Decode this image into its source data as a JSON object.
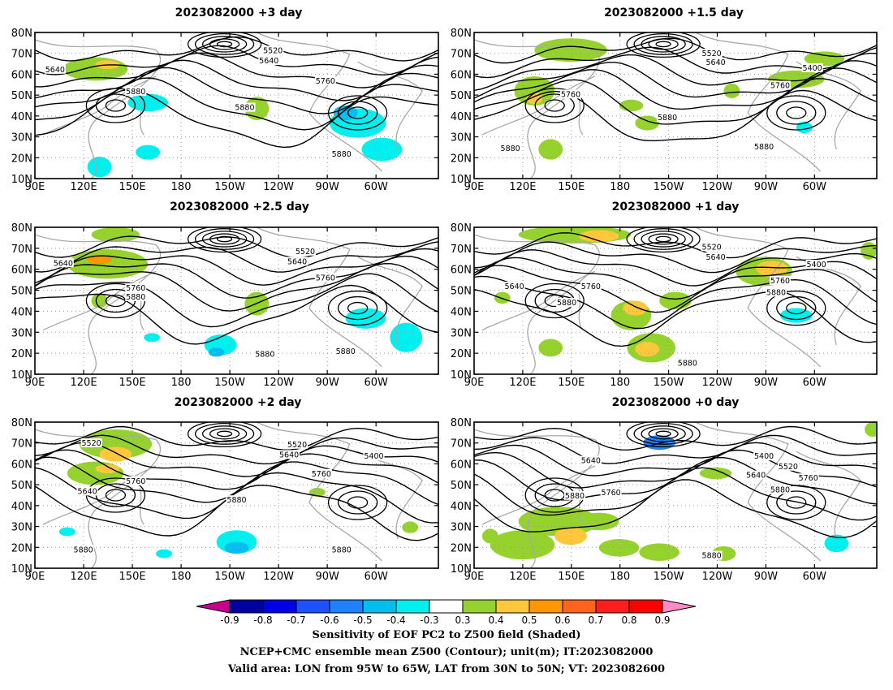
{
  "panels": [
    {
      "title": "2023082000  +3 day",
      "contours": [
        "5640",
        "5520",
        "5640",
        "5760",
        "5880",
        "5880",
        "5880"
      ]
    },
    {
      "title": "2023082000  +1.5 day",
      "contours": [
        "5520",
        "5640",
        "5400",
        "5760",
        "5760",
        "5880",
        "5880",
        "5880"
      ]
    },
    {
      "title": "2023082000  +2.5 day",
      "contours": [
        "5640",
        "5520",
        "5640",
        "5760",
        "5760",
        "5880",
        "5880",
        "5880"
      ]
    },
    {
      "title": "2023082000  +1 day",
      "contours": [
        "5520",
        "5640",
        "5400",
        "5760",
        "5640",
        "5760",
        "5880",
        "5880",
        "5880"
      ]
    },
    {
      "title": "2023082000  +2 day",
      "contours": [
        "5520",
        "5520",
        "5640",
        "5400",
        "5760",
        "5640",
        "5760",
        "5880",
        "5880",
        "5880"
      ]
    },
    {
      "title": "2023082000  +0 day",
      "contours": [
        "5640",
        "5400",
        "5520",
        "5640",
        "5760",
        "5880",
        "5760",
        "5880",
        "5880"
      ]
    }
  ],
  "axes": {
    "lat_labels": [
      "80N",
      "70N",
      "60N",
      "50N",
      "40N",
      "30N",
      "20N",
      "10N"
    ],
    "lon_labels": [
      "90E",
      "120E",
      "150E",
      "180",
      "150W",
      "120W",
      "90W",
      "60W"
    ]
  },
  "colorbar": {
    "labels": [
      "-0.9",
      "-0.8",
      "-0.7",
      "-0.6",
      "-0.5",
      "-0.4",
      "-0.3",
      "0.3",
      "0.4",
      "0.5",
      "0.6",
      "0.7",
      "0.8",
      "0.9"
    ],
    "colors": [
      "#c8008c",
      "#0000a0",
      "#0000e6",
      "#1e50ff",
      "#1e82ff",
      "#00bef0",
      "#00f0f0",
      "#ffffff",
      "#96d22d",
      "#ffc83c",
      "#ff9600",
      "#ff641e",
      "#ff1e1e",
      "#ff0000",
      "#ff8cc8"
    ]
  },
  "footer": {
    "line1": "Sensitivity of EOF PC2 to Z500 field (Shaded)",
    "line2": "NCEP+CMC ensemble mean Z500 (Contour); unit(m); IT:2023082000",
    "line3": "Valid area: LON from 95W to 65W, LAT from 30N to 50N; VT: 2023082600"
  }
}
